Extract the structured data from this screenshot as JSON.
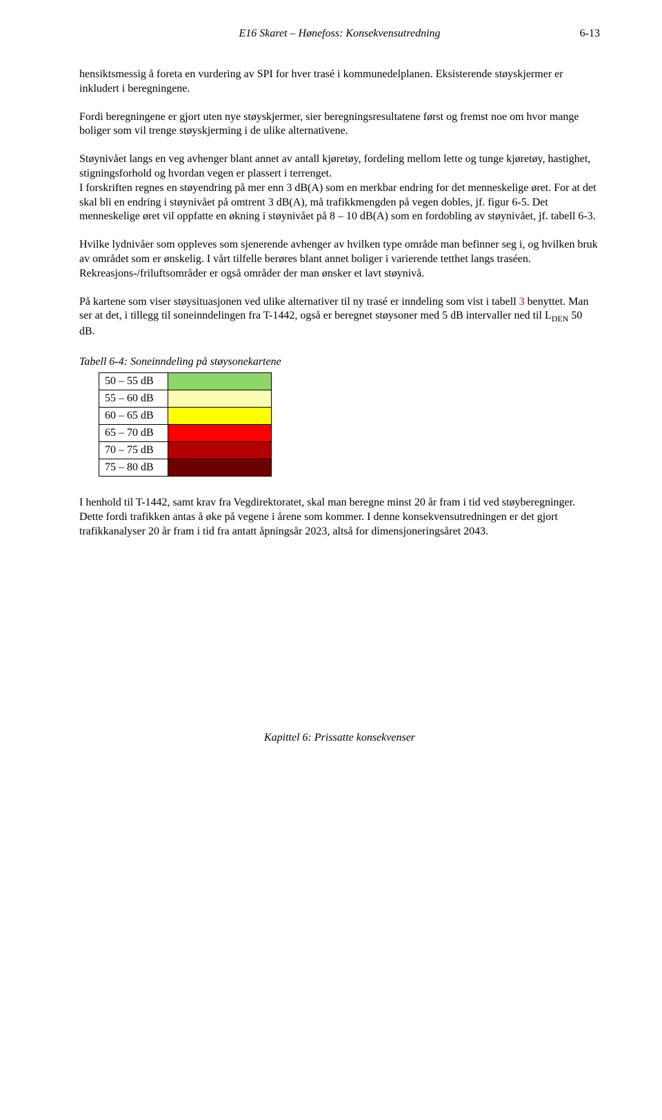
{
  "header": {
    "title": "E16 Skaret – Hønefoss: Konsekvensutredning",
    "page_number": "6-13"
  },
  "paragraphs": {
    "p1": "hensiktsmessig å foreta en vurdering av SPI for hver trasé i kommunedelplanen. Eksisterende støyskjermer er inkludert i beregningene.",
    "p2": "Fordi beregningene er gjort uten nye støyskjermer, sier beregningsresultatene først og fremst noe om hvor mange boliger som vil trenge støyskjerming i de ulike alternativene.",
    "p3": "Støynivået langs en veg avhenger blant annet av antall kjøretøy, fordeling mellom lette og tunge kjøretøy, hastighet, stigningsforhold og hvordan vegen er plassert i terrenget.",
    "p4": "I forskriften regnes en støyendring på mer enn 3 dB(A) som en merkbar endring for det menneskelige øret. For at det skal bli en endring i støynivået på omtrent 3 dB(A), må trafikkmengden på vegen dobles, jf. figur 6-5. Det menneskelige øret vil oppfatte en økning i støynivået på 8 – 10 dB(A) som en fordobling av støynivået, jf. tabell 6-3.",
    "p5": "Hvilke lydnivåer som oppleves som sjenerende avhenger av hvilken type område man befinner seg i, og hvilken bruk av området som er ønskelig. I vårt tilfelle berøres blant annet boliger i varierende tetthet langs traséen. Rekreasjons-/friluftsområder er også områder der man ønsker et lavt støynivå.",
    "p6a": "På kartene som viser støysituasjonen ved ulike alternativer til ny trasé er inndeling som vist i tabell ",
    "p6_red": "3",
    "p6b": " benyttet. Man ser at det, i tillegg til soneinndelingen fra T-1442, også er beregnet støysoner med 5 dB intervaller ned til L",
    "p6_sub": "DEN",
    "p6c": " 50 dB.",
    "table_caption": "Tabell 6-4: Soneinndeling på støysonekartene",
    "p7": "I henhold til T-1442, samt krav fra Vegdirektoratet, skal man beregne minst 20 år fram i tid ved støyberegninger. Dette fordi trafikken antas å øke på vegene i årene som kommer. I denne konsekvensutredningen er det gjort trafikkanalyser 20 år fram i tid fra antatt åpningsår 2023, altså for dimensjoneringsåret 2043."
  },
  "zone_table": {
    "rows": [
      {
        "label": "50 – 55 dB",
        "color": "#8fd66a"
      },
      {
        "label": "55 – 60 dB",
        "color": "#fbfbb1"
      },
      {
        "label": "60 – 65 dB",
        "color": "#ffff00"
      },
      {
        "label": "65 – 70 dB",
        "color": "#ff0000"
      },
      {
        "label": "70 – 75 dB",
        "color": "#b30000"
      },
      {
        "label": "75 – 80 dB",
        "color": "#6d0000"
      }
    ]
  },
  "footer": {
    "text": "Kapittel 6: Prissatte konsekvenser"
  },
  "colors": {
    "text": "#000000",
    "red_text": "#cc0000",
    "background": "#ffffff",
    "border": "#000000"
  },
  "fonts": {
    "body_family": "Times New Roman",
    "body_size_pt": 12,
    "caption_style": "italic"
  }
}
